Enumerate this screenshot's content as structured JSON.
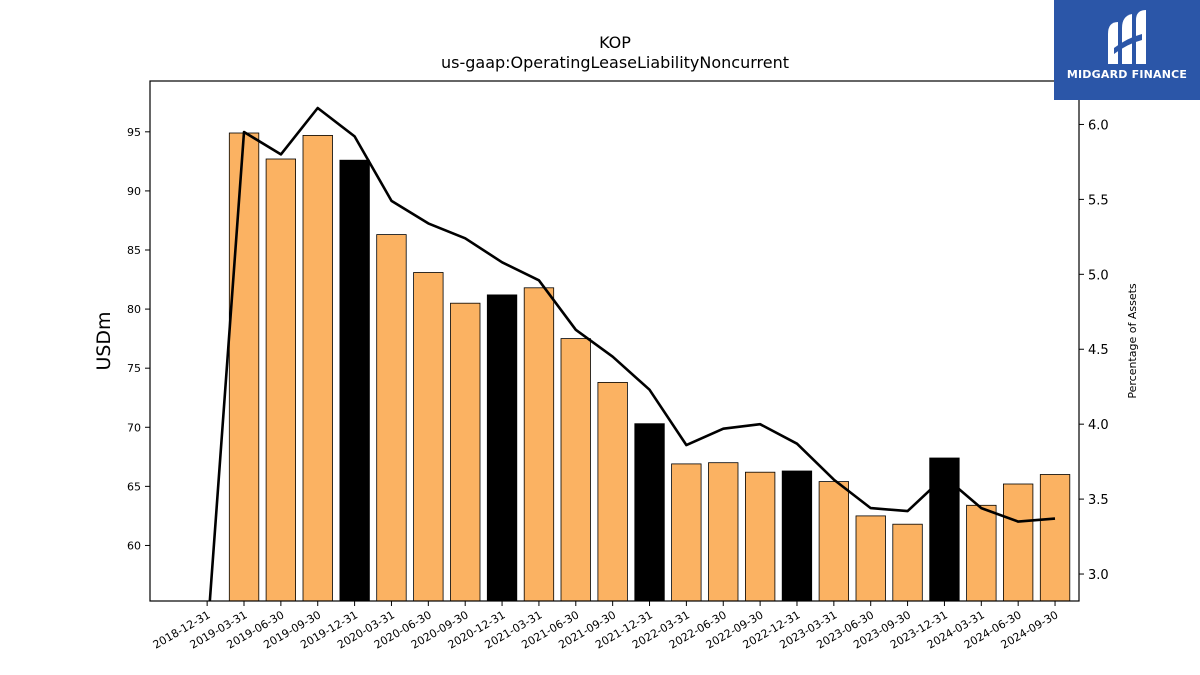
{
  "chart_data": {
    "type": "bar",
    "title": "KOP",
    "subtitle": "us-gaap:OperatingLeaseLiabilityNoncurrent",
    "ylabel": "USDm",
    "y2label": "Percentage of Assets",
    "ylim": [
      55.3,
      99.3
    ],
    "y2lim": [
      2.82,
      6.29
    ],
    "yticks": [
      60,
      65,
      70,
      75,
      80,
      85,
      90,
      95
    ],
    "y2ticks": [
      "3.0",
      "3.5",
      "4.0",
      "4.5",
      "5.0",
      "5.5",
      "6.0"
    ],
    "categories": [
      "2018-12-31",
      "2019-03-31",
      "2019-06-30",
      "2019-09-30",
      "2019-12-31",
      "2020-03-31",
      "2020-06-30",
      "2020-09-30",
      "2020-12-31",
      "2021-03-31",
      "2021-06-30",
      "2021-09-30",
      "2021-12-31",
      "2022-03-31",
      "2022-06-30",
      "2022-09-30",
      "2022-12-31",
      "2023-03-31",
      "2023-06-30",
      "2023-09-30",
      "2023-12-31",
      "2024-03-31",
      "2024-06-30",
      "2024-09-30"
    ],
    "series": [
      {
        "type": "bar",
        "values": [
          null,
          94.9,
          92.7,
          94.7,
          92.6,
          86.3,
          83.1,
          80.5,
          81.2,
          81.8,
          77.5,
          73.8,
          70.3,
          66.9,
          67.0,
          66.2,
          66.3,
          65.4,
          62.5,
          61.8,
          67.4,
          63.4,
          65.2,
          66.0
        ],
        "year_end_color": "#000000",
        "quarter_color": "#fbb262"
      },
      {
        "type": "line",
        "axis": "right",
        "color": "#000000",
        "values": [
          2.57,
          5.95,
          5.8,
          6.11,
          5.92,
          5.49,
          5.34,
          5.24,
          5.08,
          4.96,
          4.63,
          4.45,
          4.23,
          3.86,
          3.97,
          4.0,
          3.87,
          3.63,
          3.44,
          3.42,
          3.65,
          3.44,
          3.35,
          3.37
        ]
      }
    ],
    "grid": false,
    "legend": "none"
  },
  "logo": {
    "text": "MIDGARD FINANCE"
  }
}
